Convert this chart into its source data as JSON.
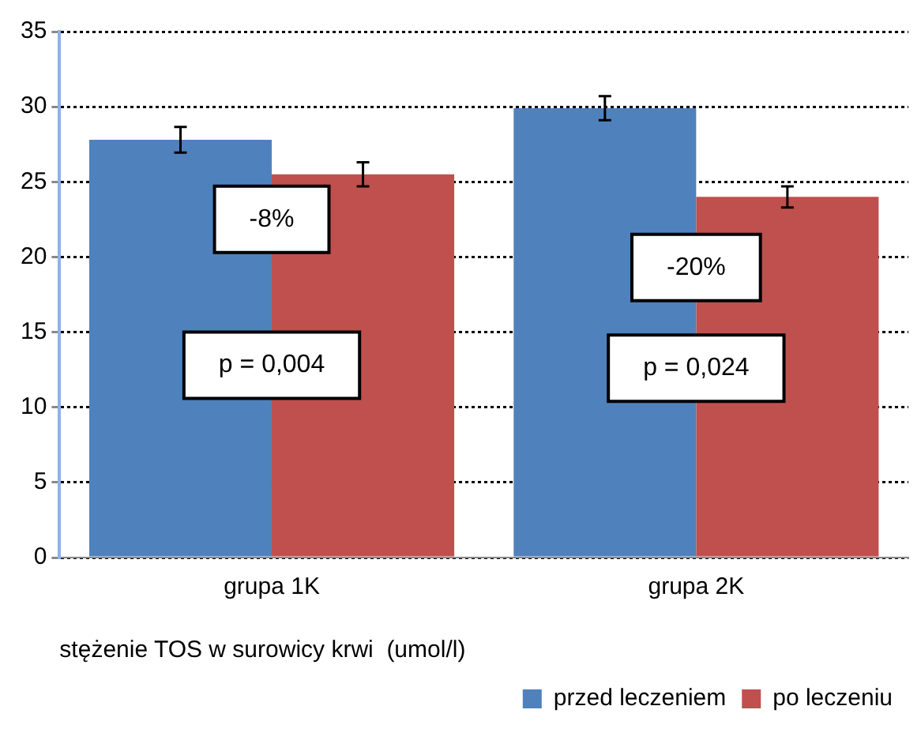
{
  "chart_data": {
    "type": "bar",
    "xlabel": "stężenie TOS w surowicy krwi  (umol/l)",
    "categories": [
      "grupa 1K",
      "grupa 2K"
    ],
    "series": [
      {
        "name": "przed leczeniem",
        "color": "#4f81bd",
        "values": [
          27.8,
          29.9
        ],
        "errors": [
          0.85,
          0.8
        ]
      },
      {
        "name": "po leczeniu",
        "color": "#c0504d",
        "values": [
          25.5,
          24.0
        ],
        "errors": [
          0.8,
          0.7
        ]
      }
    ],
    "ylim": [
      0,
      35
    ],
    "yticks": [
      0,
      5,
      10,
      15,
      20,
      25,
      30,
      35
    ],
    "grid": "y",
    "legend": "bottom right",
    "annotations": [
      {
        "text": "-8%",
        "x": "grupa 1K",
        "y": 22.5
      },
      {
        "text": "p = 0,004",
        "x": "grupa 1K",
        "y": 12.8
      },
      {
        "text": "-20%",
        "x": "grupa 2K",
        "y": 19.3
      },
      {
        "text": "p = 0,024",
        "x": "grupa 2K",
        "y": 12.6
      }
    ]
  }
}
